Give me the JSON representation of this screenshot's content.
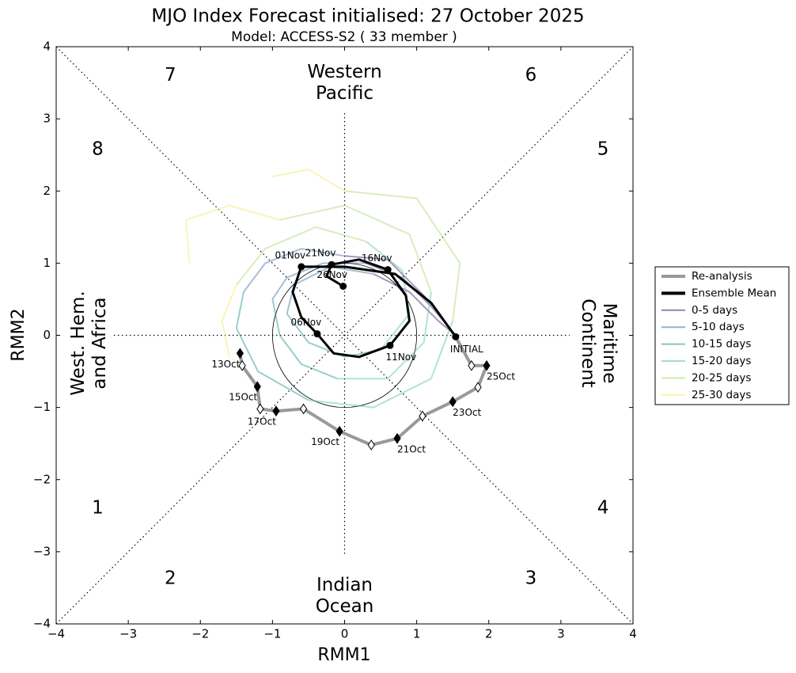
{
  "chart_data": {
    "type": "line",
    "title": "MJO Index Forecast initialised:  27  October 2025",
    "subtitle": "Model: ACCESS-S2 ( 33 member )",
    "xlabel": "RMM1",
    "ylabel": "RMM2",
    "xlim": [
      -4,
      4
    ],
    "ylim": [
      -4,
      4
    ],
    "xticks": [
      {
        "value": -4,
        "label": "−4"
      },
      {
        "value": -3,
        "label": "−3"
      },
      {
        "value": -2,
        "label": "−2"
      },
      {
        "value": -1,
        "label": "−1"
      },
      0,
      1,
      2,
      3,
      4
    ],
    "yticks": [
      {
        "value": -4,
        "label": "−4"
      },
      {
        "value": -3,
        "label": "−3"
      },
      {
        "value": -2,
        "label": "−2"
      },
      {
        "value": -1,
        "label": "−1"
      },
      0,
      1,
      2,
      3,
      4
    ],
    "phases": [
      "1",
      "2",
      "3",
      "4",
      "5",
      "6",
      "7",
      "8"
    ],
    "regions": {
      "top": [
        "Western",
        "Pacific"
      ],
      "bottom": [
        "Indian",
        "Ocean"
      ],
      "left": [
        "West. Hem.",
        "and Africa"
      ],
      "right": [
        "Maritime",
        "Continent"
      ]
    },
    "series": [
      {
        "name": "Re-analysis",
        "color": "#999999",
        "x": [
          -1.45,
          -1.42,
          -1.21,
          -1.17,
          -0.95,
          -0.57,
          -0.07,
          0.37,
          0.73,
          1.08,
          1.5,
          1.85,
          1.97,
          1.76,
          1.54
        ],
        "y": [
          -0.25,
          -0.42,
          -0.71,
          -1.02,
          -1.05,
          -1.02,
          -1.33,
          -1.52,
          -1.43,
          -1.12,
          -0.92,
          -0.72,
          -0.42,
          -0.42,
          -0.02
        ],
        "point_labels": [
          "13Oct",
          null,
          "15Oct",
          null,
          "17Oct",
          null,
          "19Oct",
          null,
          "21Oct",
          null,
          "23Oct",
          null,
          "25Oct",
          null,
          "INITIAL"
        ]
      },
      {
        "name": "Ensemble Mean",
        "color": "#000000",
        "x": [
          1.54,
          1.2,
          0.7,
          0.0,
          -0.6,
          -0.72,
          -0.6,
          -0.38,
          -0.15,
          0.2,
          0.63,
          0.9,
          0.85,
          0.6,
          0.2,
          -0.18,
          -0.25,
          -0.02
        ],
        "y": [
          -0.02,
          0.45,
          0.85,
          0.95,
          0.95,
          0.6,
          0.25,
          0.02,
          -0.25,
          -0.3,
          -0.14,
          0.2,
          0.55,
          0.91,
          1.05,
          0.98,
          0.82,
          0.68
        ],
        "point_labels": [
          null,
          null,
          null,
          null,
          "01Nov",
          null,
          null,
          "06Nov",
          null,
          null,
          "11Nov",
          null,
          null,
          "16Nov",
          null,
          "21Nov",
          null,
          "26Nov"
        ]
      },
      {
        "name": "0-5 days",
        "color": "#3e1a6b",
        "x": [
          1.54,
          1.2,
          0.8,
          0.3,
          null,
          1.54,
          1.3,
          0.9,
          0.4,
          null,
          1.54,
          1.1,
          0.6,
          0.0
        ],
        "y": [
          0,
          0.4,
          0.8,
          1.0,
          null,
          0,
          0.2,
          0.6,
          0.85,
          null,
          0,
          0.55,
          1.05,
          1.1
        ]
      },
      {
        "name": "5-10 days",
        "color": "#3f6ea5",
        "x": [
          0.3,
          -0.3,
          -0.8,
          -1.0,
          null,
          0.4,
          -0.2,
          -0.7,
          -0.8,
          null,
          0.0,
          -0.6,
          -1.1,
          -1.4
        ],
        "y": [
          1.0,
          1.0,
          0.8,
          0.5,
          null,
          0.85,
          0.95,
          0.7,
          0.3,
          null,
          1.1,
          1.2,
          1.0,
          0.6
        ]
      },
      {
        "name": "10-15 days",
        "color": "#21918c",
        "x": [
          -1.0,
          -0.9,
          -0.6,
          -0.1,
          null,
          -0.8,
          -0.5,
          0.0,
          0.5,
          null,
          -1.4,
          -1.5,
          -1.2,
          -0.5
        ],
        "y": [
          0.5,
          0.0,
          -0.4,
          -0.6,
          null,
          0.3,
          -0.1,
          -0.3,
          -0.2,
          null,
          0.6,
          0.1,
          -0.5,
          -0.9
        ]
      },
      {
        "name": "15-20 days",
        "color": "#4fc4a0",
        "x": [
          -0.1,
          0.6,
          1.1,
          1.2,
          null,
          0.5,
          0.9,
          0.8,
          0.3,
          null,
          -0.5,
          0.4,
          1.2,
          1.5
        ],
        "y": [
          -0.6,
          -0.6,
          -0.1,
          0.6,
          null,
          -0.2,
          0.3,
          0.9,
          1.3,
          null,
          -0.9,
          -1.0,
          -0.6,
          0.2
        ]
      },
      {
        "name": "20-25 days",
        "color": "#a6d96a",
        "x": [
          1.2,
          0.9,
          0.0,
          -0.9,
          null,
          0.3,
          -0.4,
          -1.1,
          -1.5,
          null,
          1.5,
          1.6,
          1.0,
          0.0
        ],
        "y": [
          0.6,
          1.4,
          1.8,
          1.6,
          null,
          1.3,
          1.5,
          1.2,
          0.7,
          null,
          0.2,
          1.0,
          1.9,
          2.0
        ]
      },
      {
        "name": "25-30 days",
        "color": "#f5e960",
        "x": [
          -0.9,
          -1.6,
          -2.2,
          -2.15,
          null,
          -1.5,
          -1.7,
          -1.6,
          null,
          0.0,
          -0.5,
          -1.0
        ],
        "y": [
          1.6,
          1.8,
          1.6,
          1.0,
          null,
          0.7,
          0.2,
          -0.3,
          null,
          2.0,
          2.3,
          2.2
        ]
      }
    ]
  }
}
